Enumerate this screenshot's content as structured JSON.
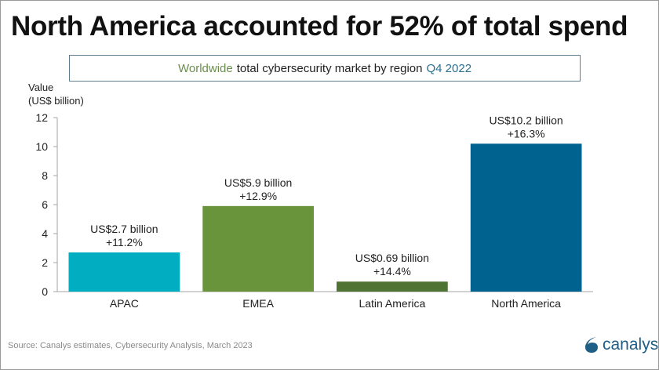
{
  "headline": "North America accounted for 52% of total spend",
  "subtitle": {
    "part1": "Worldwide",
    "part2": "total cybersecurity market by region",
    "part3": "Q4 2022"
  },
  "y_axis_label_line1": "Value",
  "y_axis_label_line2": "(US$ billion)",
  "source": "Source:  Canalys estimates, Cybersecurity Analysis, March 2023",
  "logo": {
    "icon": "canalys-swirl-icon",
    "text": "canalys"
  },
  "colors": {
    "apac": "#00adc1",
    "emea": "#6a943b",
    "latam": "#4f7332",
    "north_america": "#00628e",
    "axis": "#a6a6a6"
  },
  "chart_data": {
    "type": "bar",
    "title": "Worldwide total cybersecurity market by region Q4 2022",
    "xlabel": "",
    "ylabel": "Value (US$ billion)",
    "ylim": [
      0,
      12
    ],
    "yticks": [
      0,
      2,
      4,
      6,
      8,
      10,
      12
    ],
    "grid": false,
    "categories": [
      "APAC",
      "EMEA",
      "Latin America",
      "North America"
    ],
    "values": [
      2.7,
      5.9,
      0.69,
      10.2
    ],
    "data_labels": [
      {
        "value": "US$2.7 billion",
        "growth": "+11.2%"
      },
      {
        "value": "US$5.9 billion",
        "growth": "+12.9%"
      },
      {
        "value": "US$0.69 billion",
        "growth": "+14.4%"
      },
      {
        "value": "US$10.2 billion",
        "growth": "+16.3%"
      }
    ],
    "bar_colors": [
      "#00adc1",
      "#6a943b",
      "#4f7332",
      "#00628e"
    ]
  }
}
